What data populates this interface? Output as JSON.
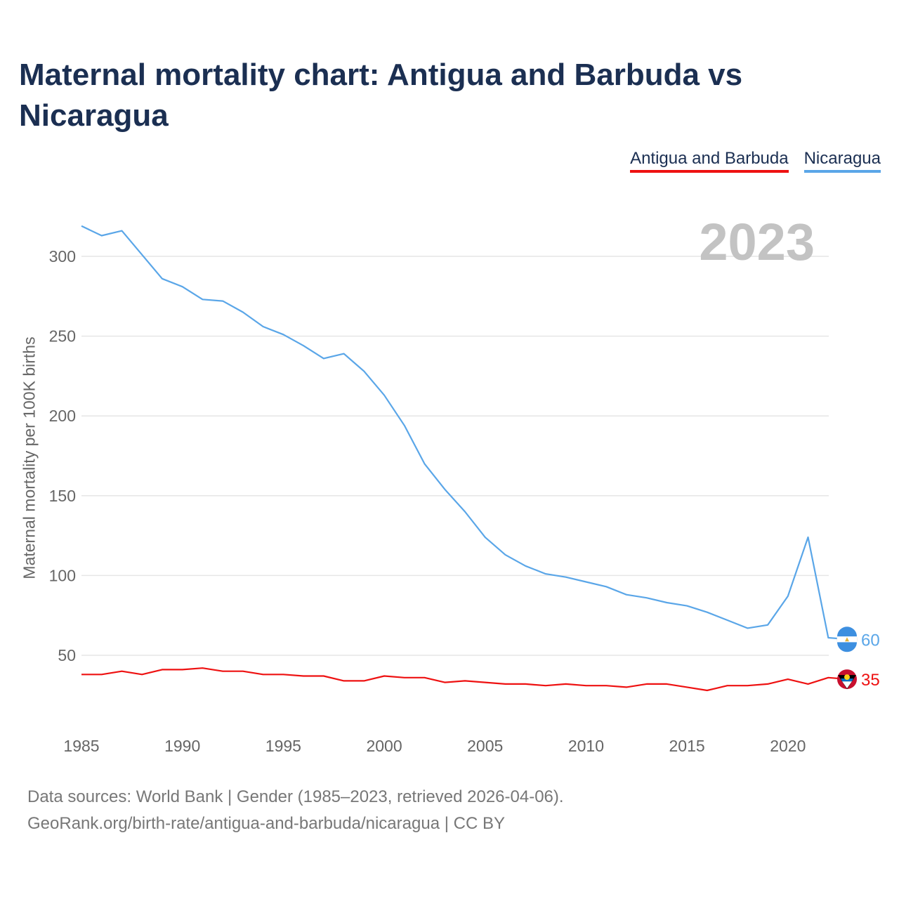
{
  "title": "Maternal mortality chart: Antigua and Barbuda vs Nicaragua",
  "legend": {
    "antigua": "Antigua and Barbuda",
    "nicaragua": "Nicaragua"
  },
  "year_label": "2023",
  "footer": {
    "line1": "Data sources: World Bank | Gender (1985–2023, retrieved 2026-04-06).",
    "line2": "GeoRank.org/birth-rate/antigua-and-barbuda/nicaragua | CC BY"
  },
  "chart_data": {
    "type": "line",
    "ylabel": "Maternal mortality per 100K births",
    "xlabel": "",
    "xlim": [
      1985,
      2023
    ],
    "ylim": [
      20,
      320
    ],
    "yticks": [
      50,
      100,
      150,
      200,
      250,
      300
    ],
    "xticks": [
      1985,
      1990,
      1995,
      2000,
      2005,
      2010,
      2015,
      2020
    ],
    "x": [
      1985,
      1986,
      1987,
      1988,
      1989,
      1990,
      1991,
      1992,
      1993,
      1994,
      1995,
      1996,
      1997,
      1998,
      1999,
      2000,
      2001,
      2002,
      2003,
      2004,
      2005,
      2006,
      2007,
      2008,
      2009,
      2010,
      2011,
      2012,
      2013,
      2014,
      2015,
      2016,
      2017,
      2018,
      2019,
      2020,
      2021,
      2022,
      2023
    ],
    "series": [
      {
        "name": "Nicaragua",
        "color": "#5aa6e8",
        "end_label": "60",
        "values": [
          319,
          313,
          316,
          301,
          286,
          281,
          273,
          272,
          265,
          256,
          251,
          244,
          236,
          239,
          228,
          213,
          194,
          170,
          154,
          140,
          124,
          113,
          106,
          101,
          99,
          96,
          93,
          88,
          86,
          83,
          81,
          77,
          72,
          67,
          69,
          87,
          124,
          61,
          60
        ]
      },
      {
        "name": "Antigua and Barbuda",
        "color": "#ee1111",
        "end_label": "35",
        "values": [
          38,
          38,
          40,
          38,
          41,
          41,
          42,
          40,
          40,
          38,
          38,
          37,
          37,
          34,
          34,
          37,
          36,
          36,
          33,
          34,
          33,
          32,
          32,
          31,
          32,
          31,
          31,
          30,
          32,
          32,
          30,
          28,
          31,
          31,
          32,
          35,
          32,
          36,
          35
        ]
      }
    ]
  }
}
